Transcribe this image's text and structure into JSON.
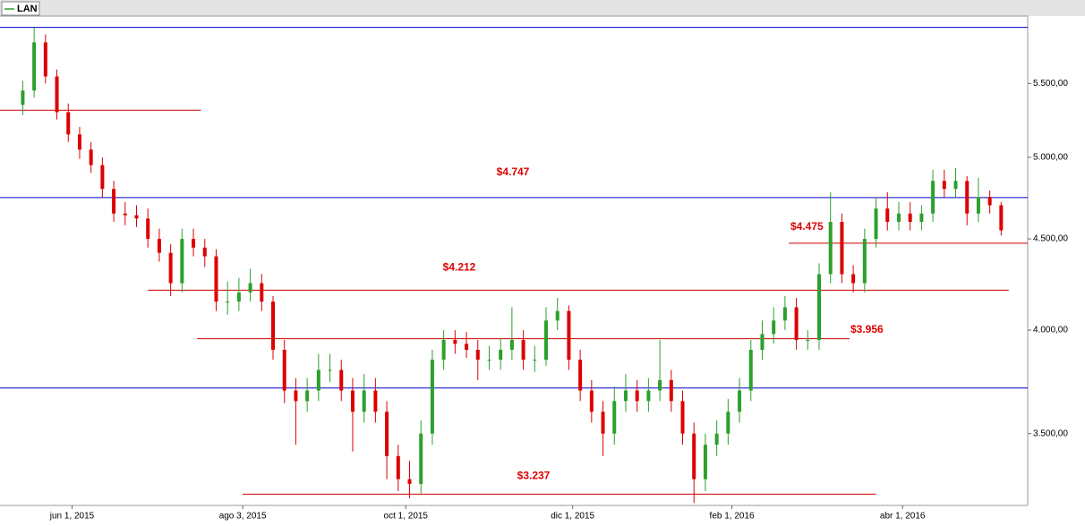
{
  "chart_data": {
    "type": "candlestick",
    "name": "LAN",
    "up_color": "#2ca02c",
    "down_color": "#dd0000",
    "log_scale": true,
    "x": [
      0,
      3,
      6,
      9,
      12,
      15,
      18,
      21,
      24,
      27,
      30,
      33,
      36,
      39,
      42,
      45,
      48,
      51,
      54,
      57,
      60,
      63,
      66,
      69,
      72,
      75,
      78,
      81,
      84,
      87,
      90,
      93,
      96,
      99,
      102,
      105,
      108,
      111,
      114,
      117,
      120,
      123,
      126,
      129,
      132,
      135,
      138,
      141,
      144,
      147,
      150,
      153,
      156,
      159,
      162,
      165,
      168,
      171,
      174,
      177,
      180,
      183,
      186,
      189,
      192,
      195,
      198,
      201,
      204,
      207,
      210,
      213,
      216,
      219,
      222,
      225,
      228,
      231,
      234,
      237,
      240,
      243,
      246,
      249,
      252,
      255,
      258
    ],
    "open": [
      5350,
      5450,
      5800,
      5550,
      5300,
      5150,
      5050,
      4950,
      4800,
      4650,
      4640,
      4620,
      4500,
      4420,
      4250,
      4500,
      4450,
      4400,
      4150,
      4150,
      4200,
      4250,
      4150,
      3900,
      3700,
      3650,
      3700,
      3800,
      3800,
      3700,
      3600,
      3700,
      3600,
      3400,
      3300,
      3280,
      3500,
      3850,
      3950,
      3930,
      3900,
      3850,
      3850,
      3900,
      3950,
      3850,
      3850,
      4050,
      4100,
      3850,
      3700,
      3600,
      3500,
      3650,
      3700,
      3650,
      3700,
      3750,
      3650,
      3500,
      3300,
      3450,
      3500,
      3600,
      3700,
      3900,
      3980,
      4050,
      4120,
      3950,
      3950,
      4300,
      4600,
      4300,
      4250,
      4500,
      4680,
      4600,
      4650,
      4600,
      4650,
      4850,
      4800,
      4850,
      4650,
      4750,
      4700
    ],
    "high": [
      5520,
      5920,
      5860,
      5600,
      5360,
      5200,
      5100,
      5000,
      4850,
      4720,
      4700,
      4680,
      4560,
      4470,
      4560,
      4560,
      4500,
      4440,
      4260,
      4280,
      4330,
      4300,
      4180,
      3950,
      3760,
      3760,
      3880,
      3880,
      3850,
      3760,
      3780,
      3760,
      3650,
      3450,
      3380,
      3560,
      3900,
      4000,
      4000,
      3990,
      3950,
      3920,
      3960,
      4120,
      4000,
      3920,
      4120,
      4170,
      4130,
      3900,
      3750,
      3650,
      3720,
      3780,
      3750,
      3760,
      3950,
      3800,
      3700,
      3550,
      3500,
      3560,
      3660,
      3760,
      3950,
      4050,
      4120,
      4180,
      4170,
      4000,
      4360,
      4780,
      4650,
      4350,
      4560,
      4750,
      4780,
      4720,
      4720,
      4700,
      4920,
      4920,
      4930,
      4880,
      4870,
      4790,
      4720
    ],
    "low": [
      5280,
      5400,
      5500,
      5250,
      5100,
      4990,
      4900,
      4750,
      4600,
      4580,
      4570,
      4450,
      4370,
      4180,
      4200,
      4400,
      4340,
      4100,
      4080,
      4100,
      4150,
      4100,
      3850,
      3640,
      3450,
      3600,
      3650,
      3740,
      3650,
      3420,
      3550,
      3550,
      3300,
      3250,
      3220,
      3240,
      3450,
      3800,
      3880,
      3860,
      3750,
      3800,
      3800,
      3850,
      3800,
      3790,
      3820,
      4000,
      3800,
      3650,
      3550,
      3400,
      3450,
      3600,
      3600,
      3600,
      3650,
      3600,
      3450,
      3200,
      3250,
      3400,
      3450,
      3550,
      3650,
      3850,
      3930,
      4000,
      3900,
      3900,
      3900,
      4250,
      4250,
      4200,
      4200,
      4450,
      4550,
      4550,
      4550,
      4550,
      4600,
      4750,
      4750,
      4580,
      4600,
      4650,
      4520
    ],
    "close": [
      5450,
      5800,
      5550,
      5300,
      5150,
      5050,
      4950,
      4800,
      4650,
      4640,
      4620,
      4500,
      4420,
      4250,
      4500,
      4450,
      4400,
      4150,
      4150,
      4200,
      4250,
      4150,
      3900,
      3700,
      3650,
      3700,
      3800,
      3800,
      3700,
      3600,
      3700,
      3600,
      3400,
      3300,
      3280,
      3500,
      3850,
      3950,
      3930,
      3900,
      3850,
      3850,
      3900,
      3950,
      3850,
      3850,
      4050,
      4100,
      3850,
      3700,
      3600,
      3500,
      3650,
      3700,
      3650,
      3700,
      3750,
      3650,
      3500,
      3300,
      3450,
      3500,
      3600,
      3700,
      3900,
      3980,
      4050,
      4120,
      3950,
      3950,
      4300,
      4600,
      4300,
      4250,
      4500,
      4680,
      4600,
      4650,
      4600,
      4650,
      4850,
      4800,
      4850,
      4650,
      4750,
      4700,
      4550
    ],
    "xlim": [
      -6,
      265
    ],
    "xticks": [
      {
        "value": 13,
        "label": "jun 1, 2015"
      },
      {
        "value": 58,
        "label": "ago 3, 2015"
      },
      {
        "value": 101,
        "label": "oct 1, 2015"
      },
      {
        "value": 145,
        "label": "dic 1, 2015"
      },
      {
        "value": 187,
        "label": "feb 1, 2016"
      },
      {
        "value": 232,
        "label": "abr 1, 2016"
      }
    ],
    "ylim": [
      3190,
      6000
    ],
    "yticks": [
      {
        "value": 3500,
        "label": "3.500,00"
      },
      {
        "value": 4000,
        "label": "4.000,00"
      },
      {
        "value": 4500,
        "label": "4.500,00"
      },
      {
        "value": 5000,
        "label": "5.000,00"
      },
      {
        "value": 5500,
        "label": "5.500,00"
      }
    ],
    "levels": [
      {
        "value": 5913,
        "color": "#0000cc",
        "x": [
          -6,
          265
        ]
      },
      {
        "value": 4747,
        "label": "$4.747",
        "color": "#0000cc",
        "x": [
          -6,
          265
        ]
      },
      {
        "value": 3712,
        "color": "#0000cc",
        "x": [
          -6,
          265
        ]
      },
      {
        "value": 5313,
        "color": "#cc0000",
        "x": [
          -6,
          47
        ]
      },
      {
        "value": 4475,
        "label": "$4.475",
        "color": "#cc0000",
        "x": [
          202,
          265
        ]
      },
      {
        "value": 4212,
        "label": "$4.212",
        "color": "#cc0000",
        "x": [
          33,
          260
        ]
      },
      {
        "value": 3956,
        "label": "$3.956",
        "color": "#cc0000",
        "x": [
          46,
          218
        ]
      },
      {
        "value": 3237,
        "label": "$3.237",
        "color": "#cc0000",
        "x": [
          58,
          225
        ]
      }
    ]
  }
}
